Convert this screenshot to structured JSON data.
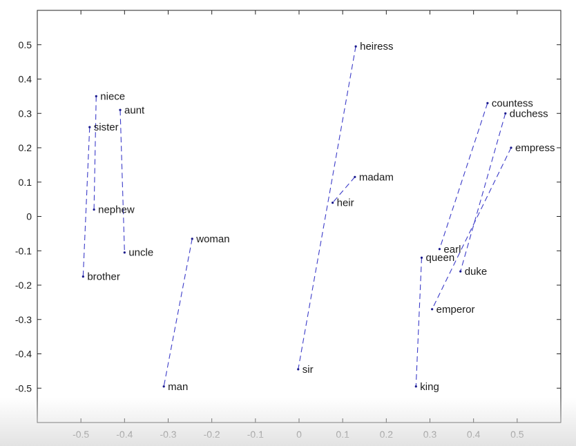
{
  "chart_data": {
    "type": "scatter",
    "title": "",
    "xlabel": "",
    "ylabel": "",
    "xlim": [
      -0.6,
      0.6
    ],
    "ylim": [
      -0.6,
      0.6
    ],
    "xticks": [
      "-0.5",
      "-0.4",
      "-0.3",
      "-0.2",
      "-0.1",
      "0",
      "0.1",
      "0.2",
      "0.3",
      "0.4",
      "0.5"
    ],
    "xtick_values": [
      -0.5,
      -0.4,
      -0.3,
      -0.2,
      -0.1,
      0,
      0.1,
      0.2,
      0.3,
      0.4,
      0.5
    ],
    "yticks": [
      "-0.5",
      "-0.4",
      "-0.3",
      "-0.2",
      "-0.1",
      "0",
      "0.1",
      "0.2",
      "0.3",
      "0.4",
      "0.5"
    ],
    "ytick_values": [
      -0.5,
      -0.4,
      -0.3,
      -0.2,
      -0.1,
      0,
      0.1,
      0.2,
      0.3,
      0.4,
      0.5
    ],
    "grid": false,
    "colors": {
      "point": "#1a1a8c",
      "line": "#3a3ac8",
      "text": "#1a1a1a",
      "axis": "#222222"
    },
    "points": [
      {
        "label": "niece",
        "x": -0.465,
        "y": 0.35
      },
      {
        "label": "aunt",
        "x": -0.41,
        "y": 0.31
      },
      {
        "label": "sister",
        "x": -0.48,
        "y": 0.26
      },
      {
        "label": "nephew",
        "x": -0.47,
        "y": 0.02
      },
      {
        "label": "uncle",
        "x": -0.4,
        "y": -0.105
      },
      {
        "label": "brother",
        "x": -0.495,
        "y": -0.175
      },
      {
        "label": "woman",
        "x": -0.245,
        "y": -0.065
      },
      {
        "label": "man",
        "x": -0.31,
        "y": -0.495
      },
      {
        "label": "heiress",
        "x": 0.13,
        "y": 0.495
      },
      {
        "label": "madam",
        "x": 0.128,
        "y": 0.115
      },
      {
        "label": "heir",
        "x": 0.077,
        "y": 0.04
      },
      {
        "label": "sir",
        "x": -0.002,
        "y": -0.445
      },
      {
        "label": "countess",
        "x": 0.432,
        "y": 0.33
      },
      {
        "label": "duchess",
        "x": 0.473,
        "y": 0.3
      },
      {
        "label": "empress",
        "x": 0.486,
        "y": 0.2
      },
      {
        "label": "earl",
        "x": 0.322,
        "y": -0.095
      },
      {
        "label": "queen",
        "x": 0.281,
        "y": -0.12
      },
      {
        "label": "duke",
        "x": 0.37,
        "y": -0.16
      },
      {
        "label": "emperor",
        "x": 0.305,
        "y": -0.27
      },
      {
        "label": "king",
        "x": 0.268,
        "y": -0.495
      }
    ],
    "pairs": [
      [
        "sister",
        "brother"
      ],
      [
        "niece",
        "nephew"
      ],
      [
        "aunt",
        "uncle"
      ],
      [
        "woman",
        "man"
      ],
      [
        "heiress",
        "sir"
      ],
      [
        "madam",
        "heir"
      ],
      [
        "countess",
        "earl"
      ],
      [
        "duchess",
        "duke"
      ],
      [
        "empress",
        "emperor"
      ],
      [
        "queen",
        "king"
      ]
    ]
  }
}
